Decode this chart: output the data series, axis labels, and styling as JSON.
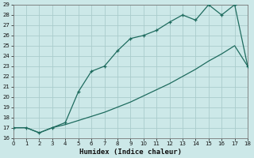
{
  "xlabel": "Humidex (Indice chaleur)",
  "background_color": "#cce8e8",
  "grid_color": "#aacccc",
  "line_color": "#1e6b5e",
  "line1_x": [
    0,
    1,
    2,
    3,
    4,
    5,
    6,
    7,
    8,
    9,
    10,
    11,
    12,
    13,
    14,
    15,
    16,
    17,
    18
  ],
  "line1_y": [
    17.0,
    17.0,
    16.5,
    17.0,
    17.3,
    17.7,
    18.1,
    18.5,
    19.0,
    19.5,
    20.1,
    20.7,
    21.3,
    22.0,
    22.7,
    23.5,
    24.2,
    25.0,
    23.0
  ],
  "line2_x": [
    0,
    1,
    2,
    3,
    4,
    5,
    6,
    7,
    8,
    9,
    10,
    11,
    12,
    13,
    14,
    15,
    16,
    17,
    18
  ],
  "line2_y": [
    17.0,
    17.0,
    16.5,
    17.0,
    17.5,
    20.5,
    22.5,
    23.0,
    24.5,
    25.7,
    26.0,
    26.5,
    27.3,
    28.0,
    27.5,
    29.0,
    28.0,
    29.0,
    23.0
  ],
  "xlim": [
    0,
    18
  ],
  "ylim": [
    16,
    29
  ],
  "xticks": [
    0,
    1,
    2,
    3,
    4,
    5,
    6,
    7,
    8,
    9,
    10,
    11,
    12,
    13,
    14,
    15,
    16,
    17,
    18
  ],
  "yticks": [
    16,
    17,
    18,
    19,
    20,
    21,
    22,
    23,
    24,
    25,
    26,
    27,
    28,
    29
  ],
  "tick_fontsize": 5.0,
  "xlabel_fontsize": 6.5
}
